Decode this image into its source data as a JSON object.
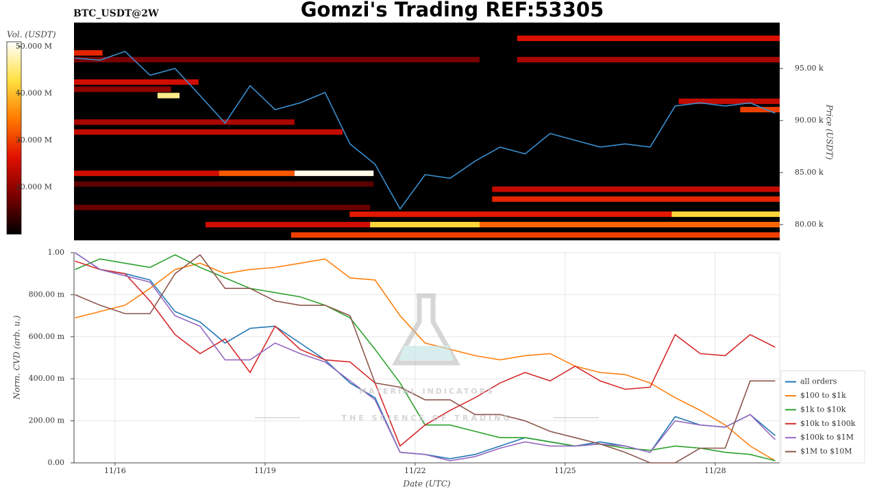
{
  "title": "Gomzi's Trading REF:53305",
  "symbol": "BTC_USDT@2W",
  "watermark": {
    "name": "MATERIAL INDICATORS",
    "tagline": "THE SCIENCE OF TRADING"
  },
  "chart_data": [
    {
      "type": "heatmap",
      "xlim": [
        15.18,
        29.29
      ],
      "ylim": [
        78490,
        99410
      ],
      "yticks": [
        {
          "value": 80000,
          "label": "80.00 k"
        },
        {
          "value": 85000,
          "label": "85.00 k"
        },
        {
          "value": 90000,
          "label": "90.00 k"
        },
        {
          "value": 95000,
          "label": "95.00 k"
        }
      ],
      "ylabel": "Price (USDT)",
      "colorbar": {
        "label": "Vol. (USDT)",
        "lim": [
          10000000,
          51000000
        ],
        "ticks": [
          {
            "value": 20000000,
            "label": "20.000 M"
          },
          {
            "value": 30000000,
            "label": "30.000 M"
          },
          {
            "value": 40000000,
            "label": "40.000 M"
          },
          {
            "value": 50000000,
            "label": "50.000 M"
          }
        ]
      },
      "colorscale": [
        "#000000",
        "#7a0000",
        "#e01000",
        "#ff7a00",
        "#ffe040",
        "#ffffff"
      ],
      "cells": [
        {
          "x0": 15.18,
          "x1": 18.08,
          "y": 84930,
          "value": 25000000
        },
        {
          "x0": 18.08,
          "x1": 19.59,
          "y": 84930,
          "value": 32000000
        },
        {
          "x0": 19.59,
          "x1": 21.17,
          "y": 84930,
          "value": 50000000
        },
        {
          "x0": 17.81,
          "x1": 21.1,
          "y": 80000,
          "value": 25000000
        },
        {
          "x0": 21.1,
          "x1": 23.29,
          "y": 80000,
          "value": 42000000
        },
        {
          "x0": 23.29,
          "x1": 29.29,
          "y": 80000,
          "value": 33000000
        },
        {
          "x0": 20.69,
          "x1": 27.13,
          "y": 81000,
          "value": 27000000
        },
        {
          "x0": 27.13,
          "x1": 29.29,
          "y": 81000,
          "value": 42000000
        },
        {
          "x0": 23.54,
          "x1": 29.29,
          "y": 82450,
          "value": 28000000
        },
        {
          "x0": 23.54,
          "x1": 29.29,
          "y": 83400,
          "value": 24000000
        },
        {
          "x0": 19.52,
          "x1": 29.29,
          "y": 79000,
          "value": 30000000
        },
        {
          "x0": 24.04,
          "x1": 29.29,
          "y": 97900,
          "value": 26000000
        },
        {
          "x0": 24.04,
          "x1": 29.29,
          "y": 95850,
          "value": 22000000
        },
        {
          "x0": 15.18,
          "x1": 23.29,
          "y": 95850,
          "value": 18000000
        },
        {
          "x0": 15.18,
          "x1": 19.59,
          "y": 89850,
          "value": 22000000
        },
        {
          "x0": 15.18,
          "x1": 20.55,
          "y": 88900,
          "value": 24000000
        },
        {
          "x0": 15.18,
          "x1": 17.67,
          "y": 93700,
          "value": 25000000
        },
        {
          "x0": 15.18,
          "x1": 17.12,
          "y": 93000,
          "value": 20000000
        },
        {
          "x0": 16.85,
          "x1": 17.29,
          "y": 92400,
          "value": 46000000
        },
        {
          "x0": 15.18,
          "x1": 15.75,
          "y": 96500,
          "value": 28000000
        },
        {
          "x0": 27.27,
          "x1": 29.29,
          "y": 91850,
          "value": 24000000
        },
        {
          "x0": 28.5,
          "x1": 29.29,
          "y": 91050,
          "value": 30000000
        },
        {
          "x0": 15.18,
          "x1": 21.1,
          "y": 81650,
          "value": 17000000
        },
        {
          "x0": 15.18,
          "x1": 21.17,
          "y": 83900,
          "value": 16000000
        }
      ],
      "line": {
        "color": "#3a8fd0",
        "x": [
          15.2,
          15.7,
          16.2,
          16.7,
          17.2,
          17.7,
          18.2,
          18.7,
          19.2,
          19.7,
          20.2,
          20.7,
          21.2,
          21.7,
          22.2,
          22.7,
          23.2,
          23.7,
          24.2,
          24.7,
          25.2,
          25.7,
          26.2,
          26.7,
          27.2,
          27.7,
          28.2,
          28.7,
          29.2
        ],
        "values": [
          96000,
          95800,
          96650,
          94350,
          95000,
          92400,
          89750,
          93350,
          91050,
          91700,
          92700,
          87750,
          85800,
          81500,
          84800,
          84450,
          86100,
          87450,
          86800,
          88750,
          88100,
          87450,
          87750,
          87450,
          91400,
          91700,
          91400,
          91700,
          90700
        ]
      }
    },
    {
      "type": "line",
      "xlim": [
        15.18,
        29.29
      ],
      "xticks": [
        {
          "value": 16,
          "label": "11/16"
        },
        {
          "value": 19,
          "label": "11/19"
        },
        {
          "value": 22,
          "label": "11/22"
        },
        {
          "value": 25,
          "label": "11/25"
        },
        {
          "value": 28,
          "label": "11/28"
        }
      ],
      "ylim": [
        0,
        1
      ],
      "yticks": [
        {
          "value": 0,
          "label": "0.00"
        },
        {
          "value": 0.2,
          "label": "200.00 m"
        },
        {
          "value": 0.4,
          "label": "400.00 m"
        },
        {
          "value": 0.6,
          "label": "600.00 m"
        },
        {
          "value": 0.8,
          "label": "800.00 m"
        },
        {
          "value": 1,
          "label": "1.00"
        }
      ],
      "xlabel": "Date (UTC)",
      "ylabel": "Norm. CVD (arb. u.)",
      "grid": true,
      "legend": "outside-lower-right",
      "x": [
        15.2,
        15.7,
        16.2,
        16.7,
        17.2,
        17.7,
        18.2,
        18.7,
        19.2,
        19.7,
        20.2,
        20.7,
        21.2,
        21.7,
        22.2,
        22.7,
        23.2,
        23.7,
        24.2,
        24.7,
        25.2,
        25.7,
        26.2,
        26.7,
        27.2,
        27.7,
        28.2,
        28.7,
        29.2
      ],
      "series": [
        {
          "name": "all orders",
          "color": "#1f77b4",
          "values": [
            1.0,
            0.92,
            0.9,
            0.87,
            0.72,
            0.67,
            0.57,
            0.64,
            0.65,
            0.57,
            0.49,
            0.38,
            0.31,
            0.05,
            0.04,
            0.02,
            0.04,
            0.08,
            0.12,
            0.1,
            0.08,
            0.1,
            0.08,
            0.05,
            0.22,
            0.18,
            0.17,
            0.23,
            0.13
          ]
        },
        {
          "name": "$100 to $1k",
          "color": "#ff7f0e",
          "values": [
            0.69,
            0.72,
            0.75,
            0.83,
            0.92,
            0.95,
            0.9,
            0.92,
            0.93,
            0.95,
            0.97,
            0.88,
            0.87,
            0.7,
            0.57,
            0.54,
            0.51,
            0.49,
            0.51,
            0.52,
            0.46,
            0.43,
            0.42,
            0.38,
            0.31,
            0.25,
            0.18,
            0.08,
            0.01
          ]
        },
        {
          "name": "$1k to $10k",
          "color": "#2ca02c",
          "values": [
            0.92,
            0.97,
            0.95,
            0.93,
            0.99,
            0.93,
            0.88,
            0.83,
            0.81,
            0.79,
            0.75,
            0.69,
            0.54,
            0.38,
            0.18,
            0.18,
            0.15,
            0.12,
            0.12,
            0.1,
            0.08,
            0.09,
            0.07,
            0.06,
            0.08,
            0.07,
            0.05,
            0.04,
            0.01
          ]
        },
        {
          "name": "$10k to $100k",
          "color": "#d62728",
          "values": [
            0.96,
            0.92,
            0.9,
            0.77,
            0.61,
            0.52,
            0.59,
            0.43,
            0.65,
            0.54,
            0.49,
            0.48,
            0.38,
            0.08,
            0.18,
            0.25,
            0.31,
            0.38,
            0.43,
            0.39,
            0.46,
            0.39,
            0.35,
            0.36,
            0.61,
            0.52,
            0.51,
            0.61,
            0.55
          ]
        },
        {
          "name": "$100k to $1M",
          "color": "#9467bd",
          "values": [
            1.0,
            0.92,
            0.89,
            0.86,
            0.7,
            0.65,
            0.49,
            0.49,
            0.57,
            0.52,
            0.48,
            0.39,
            0.3,
            0.05,
            0.04,
            0.01,
            0.03,
            0.07,
            0.1,
            0.08,
            0.08,
            0.09,
            0.08,
            0.05,
            0.2,
            0.18,
            0.17,
            0.23,
            0.11
          ]
        },
        {
          "name": "$1M to $10M",
          "color": "#8c564b",
          "values": [
            0.8,
            0.75,
            0.71,
            0.71,
            0.9,
            0.99,
            0.83,
            0.83,
            0.77,
            0.75,
            0.75,
            0.7,
            0.38,
            0.36,
            0.3,
            0.3,
            0.23,
            0.23,
            0.2,
            0.15,
            0.12,
            0.09,
            0.05,
            0,
            0,
            0.07,
            0.07,
            0.39,
            0.39
          ]
        }
      ]
    }
  ]
}
